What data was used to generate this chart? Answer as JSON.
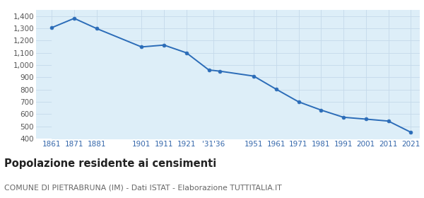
{
  "years": [
    1861,
    1871,
    1881,
    1901,
    1911,
    1921,
    1931,
    1936,
    1951,
    1961,
    1971,
    1981,
    1991,
    2001,
    2011,
    2021
  ],
  "population": [
    1305,
    1381,
    1298,
    1148,
    1163,
    1100,
    960,
    950,
    910,
    803,
    700,
    633,
    574,
    559,
    543,
    452
  ],
  "ylim": [
    400,
    1450
  ],
  "yticks": [
    400,
    500,
    600,
    700,
    800,
    900,
    1000,
    1100,
    1200,
    1300,
    1400
  ],
  "xlim": [
    1854,
    2025
  ],
  "x_tick_positions": [
    1861,
    1871,
    1881,
    1901,
    1911,
    1921,
    1933,
    1951,
    1961,
    1971,
    1981,
    1991,
    2001,
    2011,
    2021
  ],
  "x_tick_labels": [
    "1861",
    "1871",
    "1881",
    "1901",
    "1911",
    "1921",
    "'31'36",
    "1951",
    "1961",
    "1971",
    "1981",
    "1991",
    "2001",
    "2011",
    "2021"
  ],
  "line_color": "#2b6cb8",
  "fill_color": "#ddeef8",
  "marker_color": "#2b6cb8",
  "background_color": "#ffffff",
  "grid_color": "#c5d9ea",
  "title": "Popolazione residente ai censimenti",
  "subtitle": "COMUNE DI PIETRABRUNA (IM) - Dati ISTAT - Elaborazione TUTTITALIA.IT",
  "title_fontsize": 10.5,
  "subtitle_fontsize": 7.8,
  "tick_fontsize": 7.5
}
